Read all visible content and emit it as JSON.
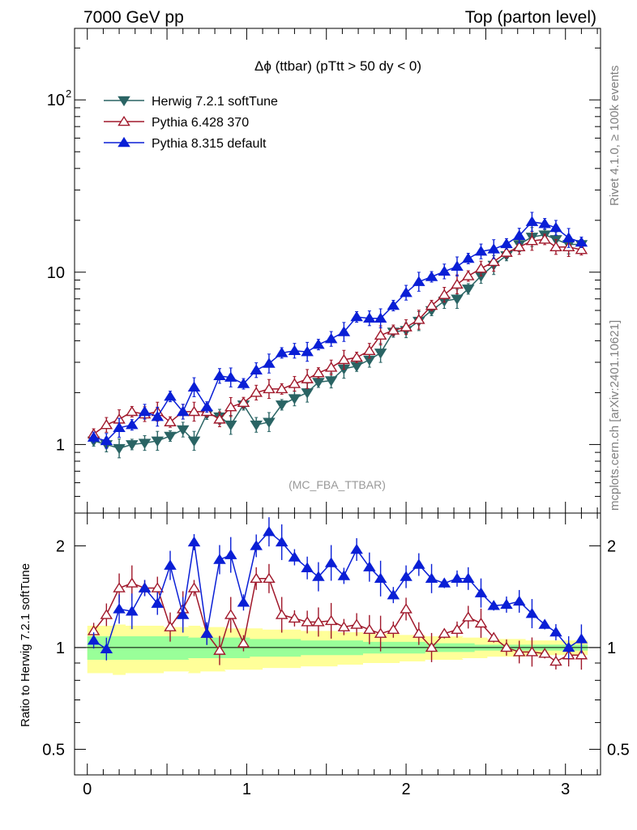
{
  "header": {
    "left": "7000 GeV pp",
    "right": "Top (parton level)"
  },
  "side_labels": {
    "rivet": "Rivet 4.1.0, ≥ 100k events",
    "mcplots": "mcplots.cern.ch [arXiv:2401.10621]"
  },
  "chart_data": [
    {
      "type": "line",
      "title": "Δϕ (ttbar) (pTtt > 50 dy < 0)",
      "watermark": "(MC_FBA_TTBAR)",
      "xlabel": "",
      "ylabel": "",
      "yscale": "log",
      "xlim": [
        -0.08,
        3.22
      ],
      "ylim": [
        0.4,
        260
      ],
      "yticks": [
        {
          "v": 1,
          "label": "1"
        },
        {
          "v": 10,
          "label": "10"
        },
        {
          "v": 100,
          "label": "10",
          "sup": "2"
        }
      ],
      "x": [
        0.04,
        0.12,
        0.2,
        0.28,
        0.36,
        0.44,
        0.52,
        0.6,
        0.67,
        0.75,
        0.83,
        0.9,
        0.98,
        1.06,
        1.14,
        1.22,
        1.3,
        1.38,
        1.45,
        1.53,
        1.61,
        1.69,
        1.77,
        1.84,
        1.92,
        2.0,
        2.08,
        2.16,
        2.24,
        2.32,
        2.39,
        2.47,
        2.55,
        2.63,
        2.71,
        2.79,
        2.87,
        2.94,
        3.02,
        3.1
      ],
      "series": [
        {
          "name": "Herwig 7.2.1 softTune",
          "color": "#2a6464",
          "marker": "tri-down-filled",
          "values": [
            1.05,
            1.0,
            0.95,
            1.0,
            1.02,
            1.05,
            1.12,
            1.22,
            1.05,
            1.5,
            1.45,
            1.3,
            1.7,
            1.3,
            1.35,
            1.7,
            1.85,
            2.0,
            2.3,
            2.35,
            2.75,
            2.85,
            3.1,
            3.4,
            4.5,
            4.6,
            5.2,
            6.0,
            6.8,
            7.0,
            8.0,
            9.5,
            11.0,
            12.5,
            14.5,
            16.0,
            16.5,
            15.5,
            14.5,
            14.5
          ]
        },
        {
          "name": "Pythia 6.428 370",
          "color": "#a0182b",
          "marker": "tri-up-open",
          "values": [
            1.15,
            1.3,
            1.4,
            1.55,
            1.5,
            1.55,
            1.35,
            1.55,
            1.55,
            1.55,
            1.4,
            1.65,
            1.75,
            2.0,
            2.1,
            2.1,
            2.25,
            2.4,
            2.6,
            2.8,
            3.1,
            3.2,
            3.5,
            4.3,
            4.6,
            4.8,
            5.3,
            6.4,
            7.4,
            8.5,
            9.5,
            10.5,
            11.5,
            13.0,
            14.0,
            15.2,
            15.5,
            14.0,
            14.0,
            13.5
          ]
        },
        {
          "name": "Pythia 8.315 default",
          "color": "#0a1fd6",
          "marker": "tri-up-filled",
          "values": [
            1.1,
            1.05,
            1.25,
            1.3,
            1.55,
            1.45,
            1.9,
            1.55,
            2.15,
            1.65,
            2.5,
            2.45,
            2.25,
            2.7,
            2.95,
            3.4,
            3.5,
            3.45,
            3.8,
            4.1,
            4.5,
            5.5,
            5.4,
            5.4,
            6.4,
            7.6,
            8.8,
            9.4,
            10.1,
            10.8,
            12.0,
            13.2,
            13.6,
            14.6,
            16.3,
            19.6,
            19.1,
            18.1,
            15.8,
            14.9
          ]
        }
      ],
      "legend": "top-left"
    },
    {
      "type": "line",
      "title": "",
      "xlabel": "",
      "ylabel": "Ratio to Herwig 7.2.1 softTune",
      "yscale": "log",
      "xlim": [
        -0.08,
        3.22
      ],
      "ylim": [
        0.42,
        2.5
      ],
      "yticks": [
        {
          "v": 0.5,
          "label": "0.5"
        },
        {
          "v": 1,
          "label": "1"
        },
        {
          "v": 2,
          "label": "2"
        }
      ],
      "xticks": [
        {
          "v": 0,
          "label": "0"
        },
        {
          "v": 1,
          "label": "1"
        },
        {
          "v": 2,
          "label": "2"
        },
        {
          "v": 3,
          "label": "3"
        }
      ],
      "x": [
        0.04,
        0.12,
        0.2,
        0.28,
        0.36,
        0.44,
        0.52,
        0.6,
        0.67,
        0.75,
        0.83,
        0.9,
        0.98,
        1.06,
        1.14,
        1.22,
        1.3,
        1.38,
        1.45,
        1.53,
        1.61,
        1.69,
        1.77,
        1.84,
        1.92,
        2.0,
        2.08,
        2.16,
        2.24,
        2.32,
        2.39,
        2.47,
        2.55,
        2.63,
        2.71,
        2.79,
        2.87,
        2.94,
        3.02,
        3.1
      ],
      "band_green": [
        0.92,
        0.92,
        0.92,
        0.92,
        0.92,
        0.92,
        0.92,
        0.92,
        0.93,
        0.93,
        0.93,
        0.93,
        0.93,
        0.94,
        0.94,
        0.94,
        0.94,
        0.95,
        0.95,
        0.95,
        0.95,
        0.95,
        0.96,
        0.96,
        0.96,
        0.96,
        0.96,
        0.97,
        0.97,
        0.97,
        0.97,
        0.98,
        0.98,
        0.98,
        0.98,
        0.98,
        0.98,
        0.98,
        0.98,
        0.98
      ],
      "band_green_hi": [
        1.08,
        1.08,
        1.08,
        1.08,
        1.08,
        1.08,
        1.08,
        1.08,
        1.07,
        1.07,
        1.07,
        1.07,
        1.07,
        1.06,
        1.06,
        1.06,
        1.06,
        1.05,
        1.05,
        1.05,
        1.05,
        1.05,
        1.04,
        1.04,
        1.04,
        1.04,
        1.04,
        1.03,
        1.03,
        1.03,
        1.03,
        1.02,
        1.02,
        1.02,
        1.02,
        1.02,
        1.02,
        1.02,
        1.02,
        1.02
      ],
      "band_yellow": [
        0.84,
        0.84,
        0.83,
        0.84,
        0.84,
        0.84,
        0.85,
        0.85,
        0.84,
        0.85,
        0.85,
        0.86,
        0.86,
        0.86,
        0.87,
        0.87,
        0.87,
        0.88,
        0.88,
        0.88,
        0.89,
        0.89,
        0.9,
        0.9,
        0.9,
        0.91,
        0.91,
        0.92,
        0.92,
        0.92,
        0.93,
        0.93,
        0.94,
        0.94,
        0.94,
        0.95,
        0.95,
        0.95,
        0.95,
        0.95
      ],
      "band_yellow_hi": [
        1.16,
        1.16,
        1.17,
        1.16,
        1.16,
        1.16,
        1.15,
        1.15,
        1.16,
        1.15,
        1.15,
        1.14,
        1.14,
        1.14,
        1.13,
        1.13,
        1.13,
        1.12,
        1.12,
        1.12,
        1.11,
        1.11,
        1.1,
        1.1,
        1.1,
        1.09,
        1.09,
        1.08,
        1.08,
        1.08,
        1.07,
        1.07,
        1.06,
        1.06,
        1.06,
        1.05,
        1.05,
        1.05,
        1.05,
        1.05
      ],
      "series": [
        {
          "name": "Pythia 6.428 370",
          "color": "#a0182b",
          "marker": "tri-up-open",
          "values": [
            1.12,
            1.25,
            1.5,
            1.55,
            1.5,
            1.5,
            1.15,
            1.3,
            1.5,
            1.1,
            0.98,
            1.25,
            1.03,
            1.6,
            1.6,
            1.25,
            1.22,
            1.19,
            1.19,
            1.2,
            1.15,
            1.17,
            1.13,
            1.1,
            1.13,
            1.3,
            1.1,
            1.0,
            1.1,
            1.13,
            1.23,
            1.18,
            1.07,
            1.0,
            0.97,
            0.97,
            0.96,
            0.91,
            0.95,
            0.95
          ]
        },
        {
          "name": "Pythia 8.315 default",
          "color": "#0a1fd6",
          "marker": "tri-up-filled",
          "values": [
            1.05,
            0.99,
            1.3,
            1.28,
            1.5,
            1.35,
            1.75,
            1.25,
            2.05,
            1.1,
            1.82,
            1.88,
            1.36,
            2.0,
            2.2,
            2.05,
            1.85,
            1.72,
            1.62,
            1.78,
            1.63,
            1.95,
            1.73,
            1.6,
            1.43,
            1.62,
            1.76,
            1.6,
            1.55,
            1.6,
            1.6,
            1.45,
            1.33,
            1.34,
            1.37,
            1.26,
            1.17,
            1.11,
            1.0,
            1.06
          ]
        }
      ]
    }
  ]
}
